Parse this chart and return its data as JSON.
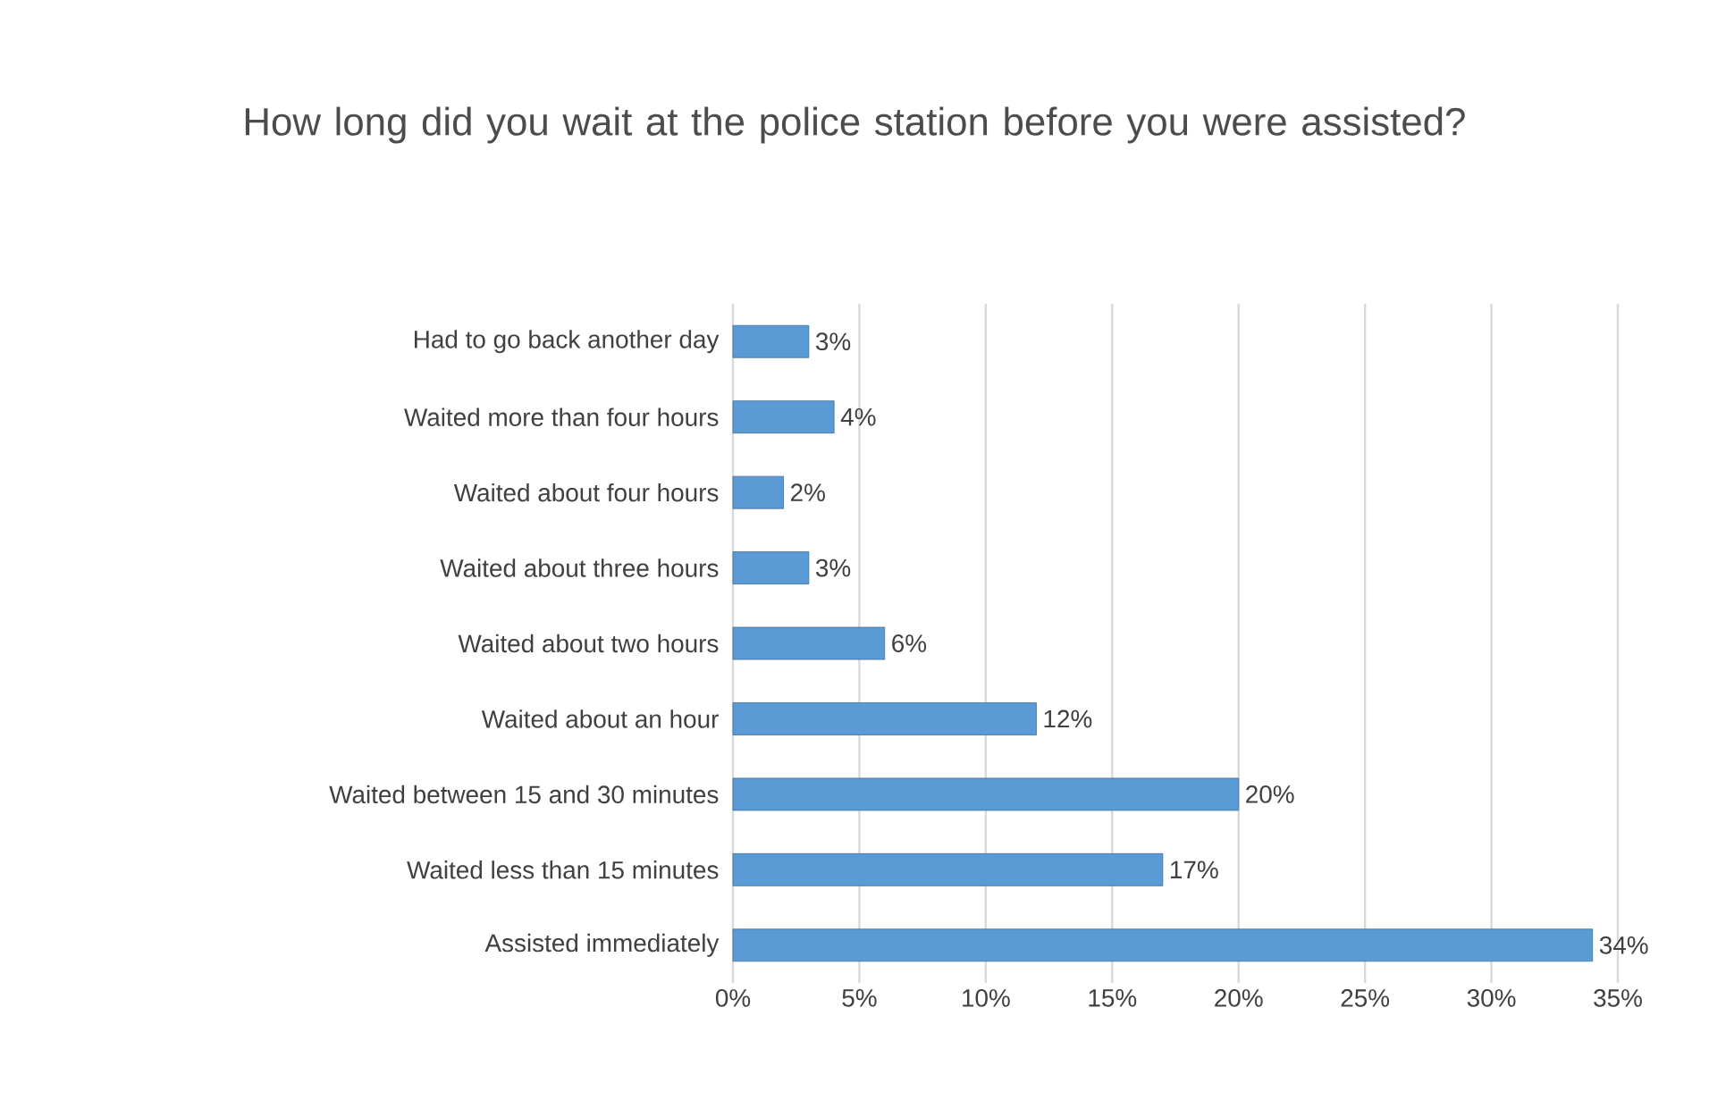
{
  "chart_data": {
    "type": "bar",
    "orientation": "horizontal",
    "title": "How long did you wait at the police station before you were assisted?",
    "categories": [
      "Had to go back another day",
      "Waited more than four hours",
      "Waited about four hours",
      "Waited about three hours",
      "Waited about two hours",
      "Waited about an hour",
      "Waited between 15 and 30 minutes",
      "Waited less than 15 minutes",
      "Assisted immediately"
    ],
    "values": [
      3,
      4,
      2,
      3,
      6,
      12,
      20,
      17,
      34
    ],
    "value_labels": [
      "3%",
      "4%",
      "2%",
      "3%",
      "6%",
      "12%",
      "20%",
      "17%",
      "34%"
    ],
    "color": "#5b9bd5",
    "xlim": [
      0,
      35
    ],
    "xticks": [
      {
        "value": 0,
        "label": "0%"
      },
      {
        "value": 5,
        "label": "5%"
      },
      {
        "value": 10,
        "label": "10%"
      },
      {
        "value": 15,
        "label": "15%"
      },
      {
        "value": 20,
        "label": "20%"
      },
      {
        "value": 25,
        "label": "25%"
      },
      {
        "value": 30,
        "label": "30%"
      },
      {
        "value": 35,
        "label": "35%"
      }
    ],
    "grid": "x"
  }
}
